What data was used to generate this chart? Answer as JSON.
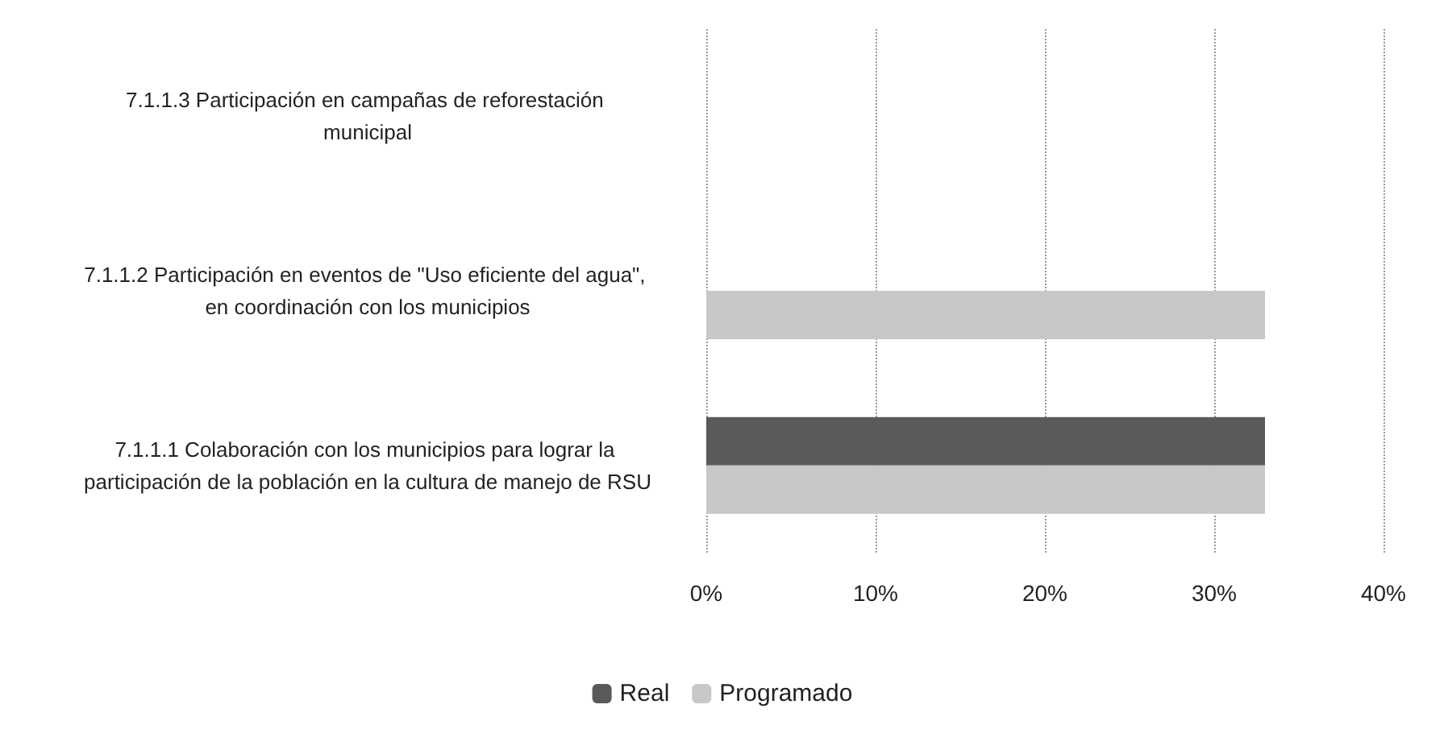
{
  "chart_data": {
    "type": "bar",
    "orientation": "horizontal",
    "categories": [
      "7.1.1.3 Participación en campañas de reforestación municipal",
      "7.1.1.2 Participación en eventos de \"Uso eficiente del agua\", en coordinación con los municipios",
      "7.1.1.1 Colaboración con los municipios para lograr la participación de la población en la cultura de manejo de RSU"
    ],
    "series": [
      {
        "name": "Real",
        "color": "#5a5a5a",
        "values": [
          0,
          0,
          33
        ]
      },
      {
        "name": "Programado",
        "color": "#c8c8c8",
        "values": [
          0,
          33,
          33
        ]
      }
    ],
    "xlim": [
      0,
      40
    ],
    "xticks": [
      {
        "value": 0,
        "label": "0%"
      },
      {
        "value": 10,
        "label": "10%"
      },
      {
        "value": 20,
        "label": "20%"
      },
      {
        "value": 30,
        "label": "30%"
      },
      {
        "value": 40,
        "label": "40%"
      }
    ],
    "grid": "x",
    "legend": "bottom"
  }
}
